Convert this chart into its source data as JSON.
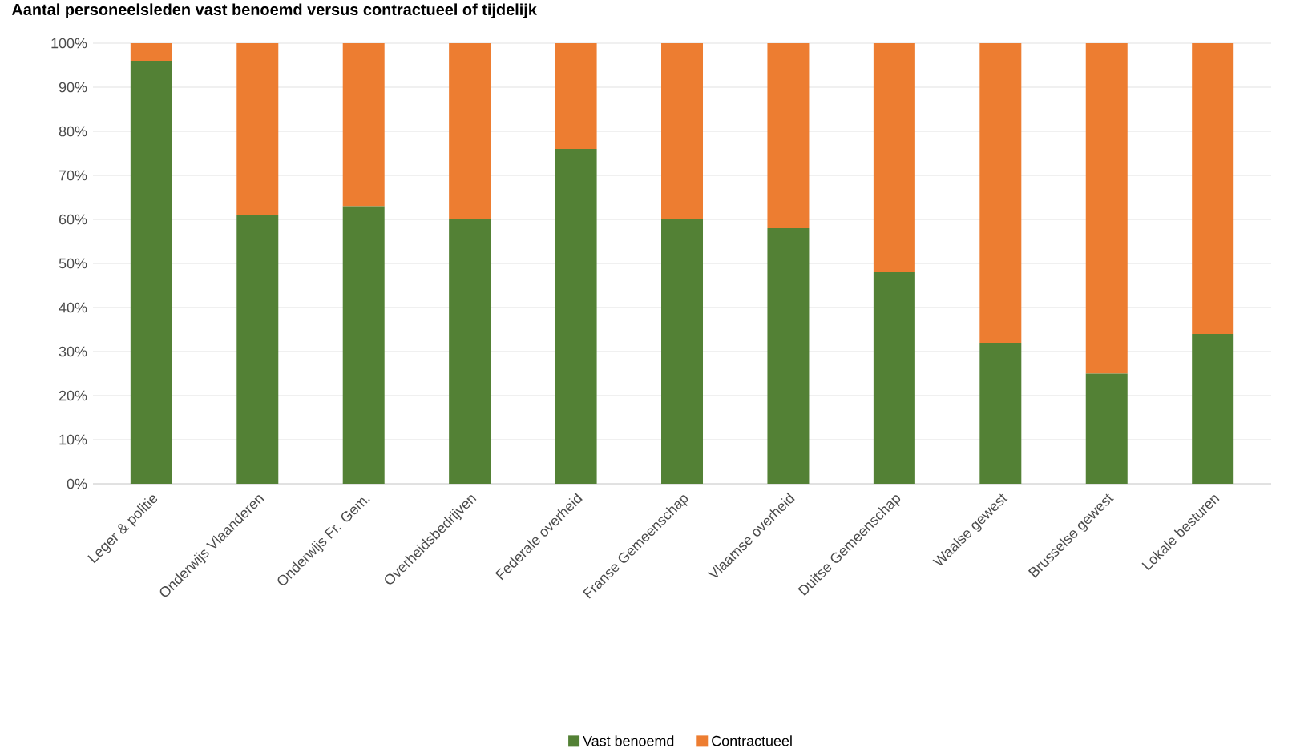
{
  "chart_data": {
    "type": "bar",
    "stacked": true,
    "title": "Aantal personeelsleden vast benoemd versus contractueel of tijdelijk",
    "categories": [
      "Leger & politie",
      "Onderwijs Vlaanderen",
      "Onderwijs Fr. Gem.",
      "Overheidsbedrijven",
      "Federale overheid",
      "Franse Gemeenschap",
      "Vlaamse overheid",
      "Duitse Gemeenschap",
      "Waalse gewest",
      "Brusselse gewest",
      "Lokale besturen"
    ],
    "series": [
      {
        "name": "Vast benoemd",
        "color": "#538135",
        "values": [
          96,
          61,
          63,
          60,
          76,
          60,
          58,
          48,
          32,
          25,
          34
        ]
      },
      {
        "name": "Contractueel",
        "color": "#ed7d31",
        "values": [
          4,
          39,
          37,
          40,
          24,
          40,
          42,
          52,
          68,
          75,
          66
        ]
      }
    ],
    "ylim": [
      0,
      100
    ],
    "yticks": [
      {
        "value": 0,
        "label": "0%"
      },
      {
        "value": 10,
        "label": "10%"
      },
      {
        "value": 20,
        "label": "20%"
      },
      {
        "value": 30,
        "label": "30%"
      },
      {
        "value": 40,
        "label": "40%"
      },
      {
        "value": 50,
        "label": "50%"
      },
      {
        "value": 60,
        "label": "60%"
      },
      {
        "value": 70,
        "label": "70%"
      },
      {
        "value": 80,
        "label": "80%"
      },
      {
        "value": 90,
        "label": "90%"
      },
      {
        "value": 100,
        "label": "100%"
      }
    ],
    "grid": "y",
    "legend": "bottom"
  }
}
